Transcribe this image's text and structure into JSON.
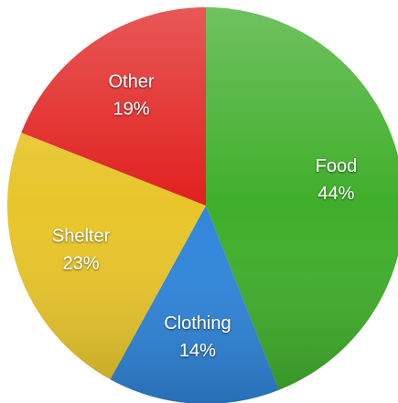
{
  "chart_data": {
    "type": "pie",
    "categories": [
      "Food",
      "Clothing",
      "Shelter",
      "Other"
    ],
    "values": [
      44,
      14,
      23,
      19
    ],
    "value_labels": [
      "44%",
      "14%",
      "23%",
      "19%"
    ],
    "colors": [
      "#3fae2a",
      "#2f86dc",
      "#e8c52a",
      "#e0201e"
    ]
  }
}
